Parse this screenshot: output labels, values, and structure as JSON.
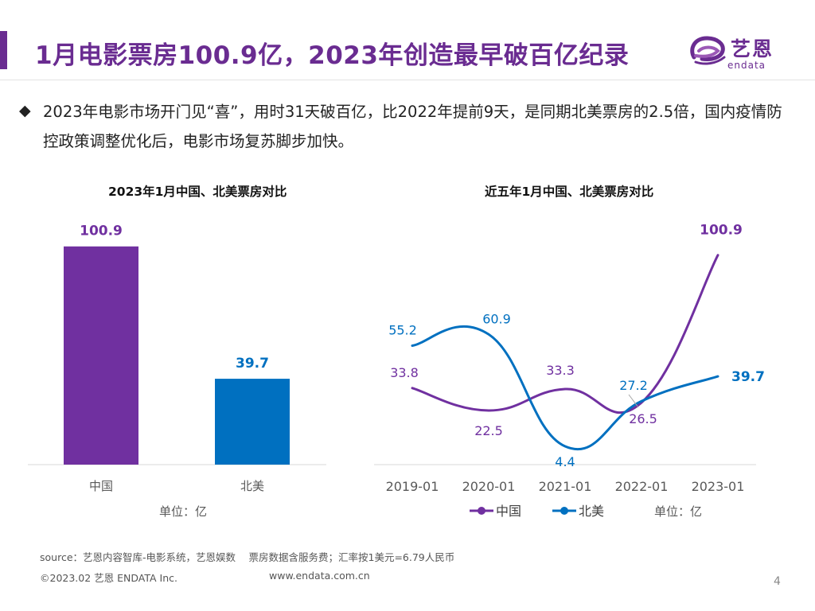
{
  "header": {
    "title": "1月电影票房100.9亿，2023年创造最早破百亿纪录",
    "logo_cn": "艺恩",
    "logo_en": "endata"
  },
  "summary": {
    "bullet_icon": "diamond-bullet-icon",
    "text": "2023年电影市场开门见“喜”，用时31天破百亿，比2022年提前9天，是同期北美票房的2.5倍，国内疫情防控政策调整优化后，电影市场复苏脚步加快。"
  },
  "colors": {
    "accent": "#6a2c91",
    "china": "#7030a0",
    "north_america": "#0070c0",
    "axis": "#d9d9d9"
  },
  "chart_data": [
    {
      "type": "bar",
      "title": "2023年1月中国、北美票房对比",
      "categories": [
        "中国",
        "北美"
      ],
      "values": [
        100.9,
        39.7
      ],
      "value_labels": [
        "100.9",
        "39.7"
      ],
      "colors": [
        "#7030a0",
        "#0070c0"
      ],
      "unit_label": "单位：亿",
      "ylim": [
        0,
        110
      ]
    },
    {
      "type": "line",
      "title": "近五年1月中国、北美票房对比",
      "x": [
        "2019-01",
        "2020-01",
        "2021-01",
        "2022-01",
        "2023-01"
      ],
      "series": [
        {
          "name": "中国",
          "values": [
            33.8,
            22.5,
            33.3,
            26.5,
            100.9
          ],
          "labels": [
            "33.8",
            "22.5",
            "33.3",
            "26.5",
            "100.9"
          ],
          "color": "#7030a0"
        },
        {
          "name": "北美",
          "values": [
            55.2,
            60.9,
            4.4,
            27.2,
            39.7
          ],
          "labels": [
            "55.2",
            "60.9",
            "4.4",
            "27.2",
            "39.7"
          ],
          "color": "#0070c0"
        }
      ],
      "legend": [
        "中国",
        "北美"
      ],
      "unit_label": "单位：亿",
      "ylim": [
        0,
        110
      ],
      "smooth": true
    }
  ],
  "footer": {
    "source": "source：艺恩内容智库-电影系统，艺恩娱数　 票房数据含服务费；汇率按1美元=6.79人民币",
    "copyright": "©2023.02 艺恩 ENDATA Inc.",
    "website": "www.endata.com.cn",
    "page_number": "4"
  }
}
